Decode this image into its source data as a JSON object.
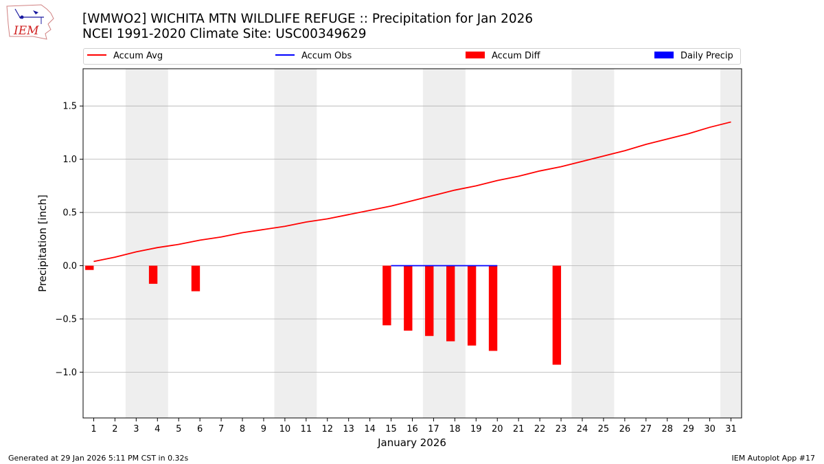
{
  "title_line1": "[WMWO2] WICHITA MTN WILDLIFE REFUGE :: Precipitation for Jan 2026",
  "title_line2": "NCEI 1991-2020 Climate Site: USC00349629",
  "logo_text": "IEM",
  "footer_left": "Generated at 29 Jan 2026 5:11 PM CST in 0.32s",
  "footer_right": "IEM Autoplot App #17",
  "colors": {
    "avg": "#ff0000",
    "obs": "#0000ff",
    "diff": "#ff0000",
    "daily": "#0000ff",
    "weekend": "#eeeeee",
    "grid": "#b0b0b0"
  },
  "chart_data": {
    "type": "line",
    "xlabel": "January 2026",
    "ylabel": "Precipitation [inch]",
    "xlim": [
      0.5,
      31.5
    ],
    "ylim": [
      -1.43,
      1.85
    ],
    "y_ticks": [
      -1.0,
      -0.5,
      0.0,
      0.5,
      1.0,
      1.5
    ],
    "y_tick_labels": [
      "−1.0",
      "−0.5",
      "0.0",
      "0.5",
      "1.0",
      "1.5"
    ],
    "x_ticks": [
      1,
      2,
      3,
      4,
      5,
      6,
      7,
      8,
      9,
      10,
      11,
      12,
      13,
      14,
      15,
      16,
      17,
      18,
      19,
      20,
      21,
      22,
      23,
      24,
      25,
      26,
      27,
      28,
      29,
      30,
      31
    ],
    "grid": "horizontal",
    "legend_position": "top",
    "weekend_spans": [
      [
        2.5,
        4.5
      ],
      [
        9.5,
        11.5
      ],
      [
        16.5,
        18.5
      ],
      [
        23.5,
        25.5
      ],
      [
        30.5,
        31.5
      ]
    ],
    "legend": [
      "Accum Avg",
      "Accum Obs",
      "Accum Diff",
      "Daily Precip"
    ],
    "series": [
      {
        "name": "Accum Avg",
        "kind": "line",
        "color": "#ff0000",
        "x": [
          1,
          2,
          3,
          4,
          5,
          6,
          7,
          8,
          9,
          10,
          11,
          12,
          13,
          14,
          15,
          16,
          17,
          18,
          19,
          20,
          21,
          22,
          23,
          24,
          25,
          26,
          27,
          28,
          29,
          30,
          31
        ],
        "values": [
          0.04,
          0.08,
          0.13,
          0.17,
          0.2,
          0.24,
          0.27,
          0.31,
          0.34,
          0.37,
          0.41,
          0.44,
          0.48,
          0.52,
          0.56,
          0.61,
          0.66,
          0.71,
          0.75,
          0.8,
          0.84,
          0.89,
          0.93,
          0.98,
          1.03,
          1.08,
          1.14,
          1.19,
          1.24,
          1.3,
          1.35
        ]
      },
      {
        "name": "Accum Obs",
        "kind": "line",
        "color": "#0000ff",
        "x": [
          15,
          16,
          17,
          18,
          19,
          20
        ],
        "values": [
          0,
          0,
          0,
          0,
          0,
          0
        ]
      },
      {
        "name": "Accum Diff",
        "kind": "bar",
        "color": "#ff0000",
        "x": [
          1,
          4,
          6,
          15,
          16,
          17,
          18,
          19,
          20,
          23
        ],
        "values": [
          -0.04,
          -0.17,
          -0.24,
          -0.56,
          -0.61,
          -0.66,
          -0.71,
          -0.75,
          -0.8,
          -0.93
        ]
      },
      {
        "name": "Daily Precip",
        "kind": "bar",
        "color": "#0000ff",
        "x": [],
        "values": []
      }
    ]
  }
}
